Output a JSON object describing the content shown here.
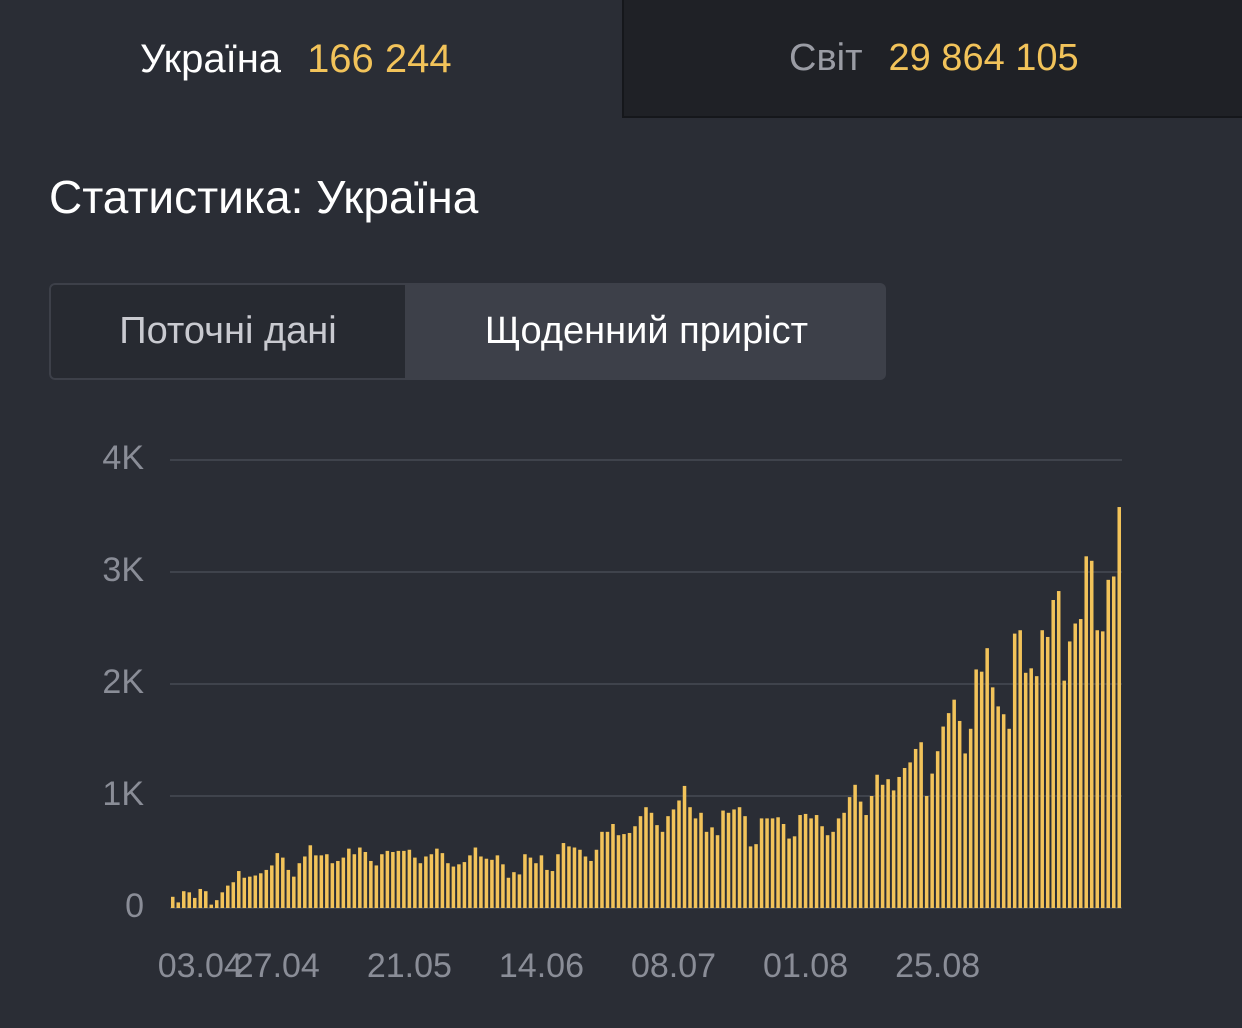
{
  "tabs": [
    {
      "label": "Україна",
      "count": "166 244"
    },
    {
      "label": "Світ",
      "count": "29 864 105"
    }
  ],
  "heading": "Статистика: Україна",
  "toggle": [
    "Поточні дані",
    "Щоденний приріст"
  ],
  "chart_data": {
    "type": "bar",
    "color": "#f2c35a",
    "grid": true,
    "categories": [
      null,
      null,
      null,
      null,
      null,
      "03.04",
      null,
      null,
      null,
      null,
      null,
      null,
      null,
      null,
      null,
      null,
      null,
      null,
      null,
      "27.04",
      null,
      null,
      null,
      null,
      null,
      null,
      null,
      null,
      null,
      null,
      null,
      null,
      null,
      null,
      null,
      null,
      null,
      null,
      null,
      null,
      null,
      null,
      null,
      "21.05",
      null,
      null,
      null,
      null,
      null,
      null,
      null,
      null,
      null,
      null,
      null,
      null,
      null,
      null,
      null,
      null,
      null,
      null,
      null,
      null,
      null,
      null,
      null,
      "14.06",
      null,
      null,
      null,
      null,
      null,
      null,
      null,
      null,
      null,
      null,
      null,
      null,
      null,
      null,
      null,
      null,
      null,
      null,
      null,
      null,
      null,
      null,
      null,
      "08.07",
      null,
      null,
      null,
      null,
      null,
      null,
      null,
      null,
      null,
      null,
      null,
      null,
      null,
      null,
      null,
      null,
      null,
      null,
      null,
      null,
      null,
      null,
      null,
      "01.08",
      null,
      null,
      null,
      null,
      null,
      null,
      null,
      null,
      null,
      null,
      null,
      null,
      null,
      null,
      null,
      null,
      null,
      null,
      null,
      null,
      null,
      null,
      null,
      "25.08",
      null,
      null,
      null,
      null,
      null,
      null,
      null,
      null,
      null,
      null,
      null,
      null,
      null,
      null,
      null,
      null,
      null,
      null,
      null,
      null,
      null,
      null,
      null,
      null,
      null,
      null,
      null,
      null,
      null,
      null,
      null,
      null,
      null
    ],
    "values": [
      100,
      50,
      150,
      140,
      90,
      170,
      150,
      30,
      70,
      140,
      200,
      230,
      330,
      270,
      280,
      290,
      310,
      340,
      380,
      490,
      450,
      340,
      280,
      400,
      460,
      560,
      470,
      470,
      480,
      400,
      420,
      450,
      530,
      480,
      540,
      500,
      420,
      380,
      480,
      510,
      500,
      510,
      510,
      520,
      450,
      400,
      460,
      480,
      530,
      490,
      400,
      370,
      390,
      410,
      470,
      540,
      460,
      440,
      430,
      470,
      390,
      270,
      320,
      300,
      480,
      450,
      400,
      470,
      340,
      330,
      480,
      580,
      550,
      540,
      520,
      460,
      420,
      520,
      680,
      680,
      750,
      650,
      660,
      670,
      730,
      820,
      900,
      850,
      740,
      680,
      820,
      880,
      960,
      1090,
      900,
      800,
      850,
      680,
      720,
      650,
      870,
      850,
      880,
      900,
      820,
      550,
      570,
      800,
      800,
      800,
      810,
      750,
      620,
      640,
      830,
      840,
      800,
      830,
      730,
      650,
      680,
      800,
      850,
      990,
      1100,
      950,
      830,
      1000,
      1190,
      1100,
      1150,
      1050,
      1170,
      1250,
      1300,
      1420,
      1480,
      1000,
      1200,
      1400,
      1620,
      1740,
      1860,
      1670,
      1380,
      1600,
      2130,
      2110,
      2320,
      1970,
      1800,
      1730,
      1600,
      2450,
      2480,
      2100,
      2140,
      2070,
      2480,
      2420,
      2750,
      2830,
      2030,
      2380,
      2540,
      2580,
      3140,
      3100,
      2480,
      2470,
      2930,
      2960,
      3580
    ],
    "ylim": [
      0,
      4000
    ],
    "yticks": [
      0,
      {
        "value": 1000,
        "label": "1K"
      },
      {
        "value": 2000,
        "label": "2K"
      },
      {
        "value": 3000,
        "label": "3K"
      },
      {
        "value": 4000,
        "label": "4K"
      }
    ]
  }
}
